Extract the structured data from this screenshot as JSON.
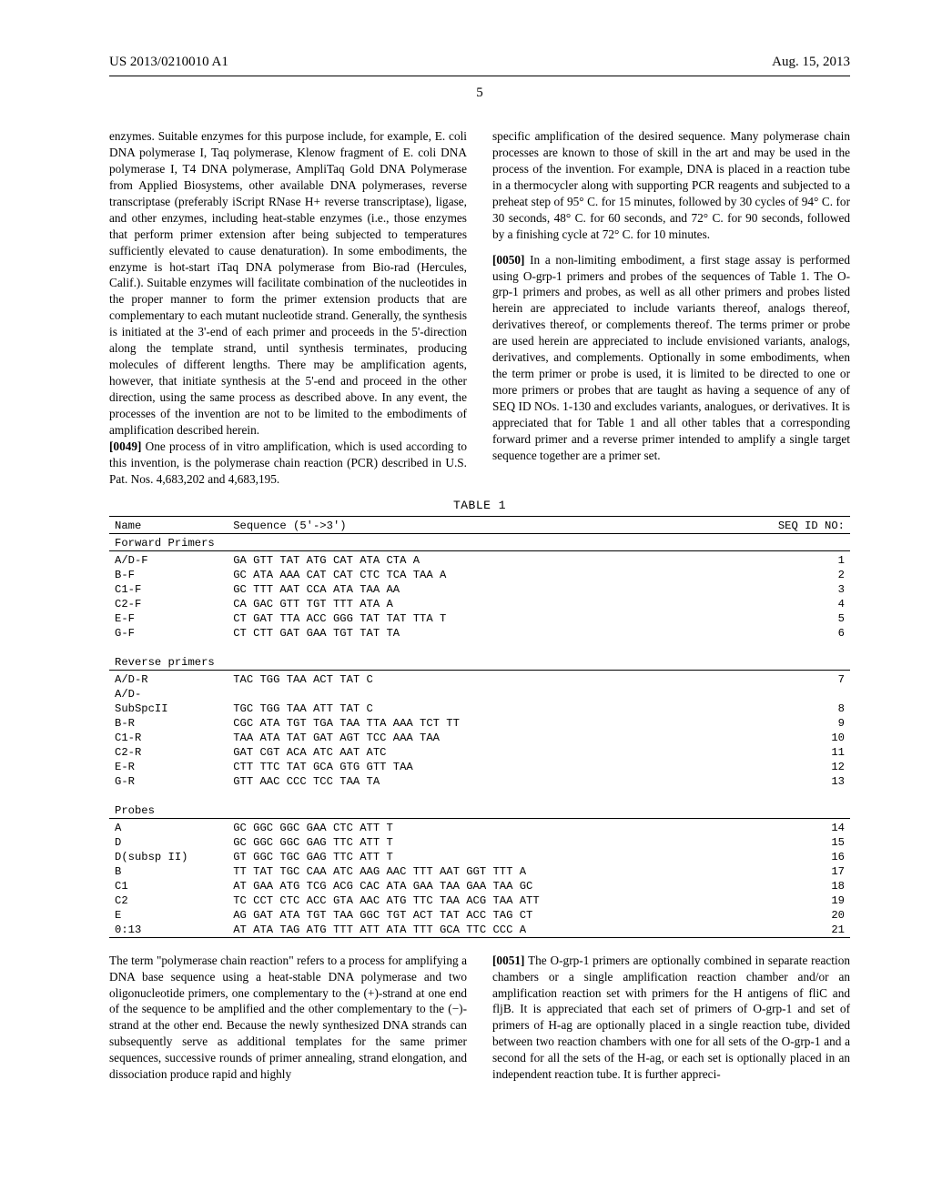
{
  "header": {
    "left": "US 2013/0210010 A1",
    "right": "Aug. 15, 2013",
    "page_number": "5"
  },
  "col1": {
    "p1": "enzymes. Suitable enzymes for this purpose include, for example, E. coli DNA polymerase I, Taq polymerase, Klenow fragment of E. coli DNA polymerase I, T4 DNA polymerase, AmpliTaq Gold DNA Polymerase from Applied Biosystems, other available DNA polymerases, reverse transcriptase (preferably iScript RNase H+ reverse transcriptase), ligase, and other enzymes, including heat-stable enzymes (i.e., those enzymes that perform primer extension after being subjected to temperatures sufficiently elevated to cause denaturation). In some embodiments, the enzyme is hot-start iTaq DNA polymerase from Bio-rad (Hercules, Calif.). Suitable enzymes will facilitate combination of the nucleotides in the proper manner to form the primer extension products that are complementary to each mutant nucleotide strand. Generally, the synthesis is initiated at the 3'-end of each primer and proceeds in the 5'-direction along the template strand, until synthesis terminates, producing molecules of different lengths. There may be amplification agents, however, that initiate synthesis at the 5'-end and proceed in the other direction, using the same process as described above. In any event, the processes of the invention are not to be limited to the embodiments of amplification described herein.",
    "p2_num": "[0049]",
    "p2": "   One process of in vitro amplification, which is used according to this invention, is the polymerase chain reaction (PCR) described in U.S. Pat. Nos. 4,683,202 and 4,683,195."
  },
  "col2": {
    "p1": "specific amplification of the desired sequence. Many polymerase chain processes are known to those of skill in the art and may be used in the process of the invention. For example, DNA is placed in a reaction tube in a thermocycler along with supporting PCR reagents and subjected to a preheat step of 95° C. for 15 minutes, followed by 30 cycles of 94° C. for 30 seconds, 48° C. for 60 seconds, and 72° C. for 90 seconds, followed by a finishing cycle at 72° C. for 10 minutes.",
    "p2_num": "[0050]",
    "p2": "   In a non-limiting embodiment, a first stage assay is performed using O-grp-1 primers and probes of the sequences of Table 1. The O-grp-1 primers and probes, as well as all other primers and probes listed herein are appreciated to include variants thereof, analogs thereof, derivatives thereof, or complements thereof. The terms primer or probe are used herein are appreciated to include envisioned variants, analogs, derivatives, and complements. Optionally in some embodiments, when the term primer or probe is used, it is limited to be directed to one or more primers or probes that are taught as having a sequence of any of SEQ ID NOs. 1-130 and excludes variants, analogues, or derivatives. It is appreciated that for Table 1 and all other tables that a corresponding forward primer and a reverse primer intended to amplify a single target sequence together are a primer set."
  },
  "table": {
    "caption": "TABLE 1",
    "headers": {
      "name": "Name",
      "seq": "Sequence (5'->3')",
      "id": "SEQ ID NO:"
    },
    "sections": [
      {
        "title": "Forward Primers",
        "rows": [
          {
            "name": "A/D-F",
            "seq": "GA GTT TAT ATG CAT ATA CTA A",
            "id": "1"
          },
          {
            "name": "B-F",
            "seq": "GC ATA AAA CAT CAT CTC TCA TAA A",
            "id": "2"
          },
          {
            "name": "C1-F",
            "seq": "GC TTT AAT CCA ATA TAA AA",
            "id": "3"
          },
          {
            "name": "C2-F",
            "seq": "CA GAC GTT TGT TTT ATA A",
            "id": "4"
          },
          {
            "name": "E-F",
            "seq": "CT GAT TTA ACC GGG TAT TAT TTA T",
            "id": "5"
          },
          {
            "name": "G-F",
            "seq": "CT CTT GAT GAA TGT TAT TA",
            "id": "6"
          }
        ]
      },
      {
        "title": "Reverse primers",
        "rows": [
          {
            "name": "A/D-R",
            "seq": "TAC TGG TAA ACT TAT C",
            "id": "7"
          },
          {
            "name": "A/D-",
            "seq": "",
            "id": ""
          },
          {
            "name": "SubSpcII",
            "seq": "TGC TGG TAA ATT TAT C",
            "id": "8"
          },
          {
            "name": "B-R",
            "seq": "CGC ATA TGT TGA TAA TTA AAA TCT TT",
            "id": "9"
          },
          {
            "name": "C1-R",
            "seq": "TAA ATA TAT GAT AGT TCC AAA TAA",
            "id": "10"
          },
          {
            "name": "C2-R",
            "seq": "GAT CGT ACA ATC AAT ATC",
            "id": "11"
          },
          {
            "name": "E-R",
            "seq": "CTT TTC TAT GCA GTG GTT TAA",
            "id": "12"
          },
          {
            "name": "G-R",
            "seq": "GTT AAC CCC TCC TAA TA",
            "id": "13"
          }
        ]
      },
      {
        "title": "Probes",
        "rows": [
          {
            "name": "A",
            "seq": "GC GGC GGC GAA CTC ATT T",
            "id": "14"
          },
          {
            "name": "D",
            "seq": "GC GGC GGC GAG TTC ATT T",
            "id": "15"
          },
          {
            "name": "D(subsp II)",
            "seq": "GT GGC TGC GAG TTC ATT T",
            "id": "16"
          },
          {
            "name": "B",
            "seq": "TT TAT TGC CAA ATC AAG AAC TTT AAT GGT TTT A",
            "id": "17"
          },
          {
            "name": "C1",
            "seq": "AT GAA ATG TCG ACG CAC ATA GAA TAA GAA TAA GC",
            "id": "18"
          },
          {
            "name": "C2",
            "seq": "TC CCT CTC ACC GTA AAC ATG TTC TAA ACG TAA ATT",
            "id": "19"
          },
          {
            "name": "E",
            "seq": "AG GAT ATA TGT TAA GGC TGT ACT TAT ACC TAG CT",
            "id": "20"
          },
          {
            "name": "0:13",
            "seq": "AT ATA TAG ATG TTT ATT ATA TTT GCA TTC CCC A",
            "id": "21"
          }
        ]
      }
    ]
  },
  "bottom": {
    "left": "The term \"polymerase chain reaction\" refers to a process for amplifying a DNA base sequence using a heat-stable DNA polymerase and two oligonucleotide primers, one complementary to the (+)-strand at one end of the sequence to be amplified and the other complementary to the (−)-strand at the other end. Because the newly synthesized DNA strands can subsequently serve as additional templates for the same primer sequences, successive rounds of primer annealing, strand elongation, and dissociation produce rapid and highly",
    "right_num": "[0051]",
    "right": "   The O-grp-1 primers are optionally combined in separate reaction chambers or a single amplification reaction chamber and/or an amplification reaction set with primers for the H antigens of fliC and fljB. It is appreciated that each set of primers of O-grp-1 and set of primers of H-ag are optionally placed in a single reaction tube, divided between two reaction chambers with one for all sets of the O-grp-1 and a second for all the sets of the H-ag, or each set is optionally placed in an independent reaction tube. It is further appreci-"
  }
}
